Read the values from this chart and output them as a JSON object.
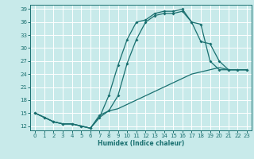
{
  "xlabel": "Humidex (Indice chaleur)",
  "bg_color": "#c8eaea",
  "grid_color": "#ffffff",
  "line_color": "#1a7070",
  "xlim": [
    -0.5,
    23.5
  ],
  "ylim": [
    11,
    40
  ],
  "yticks": [
    12,
    15,
    18,
    21,
    24,
    27,
    30,
    33,
    36,
    39
  ],
  "xticks": [
    0,
    1,
    2,
    3,
    4,
    5,
    6,
    7,
    8,
    9,
    10,
    11,
    12,
    13,
    14,
    15,
    16,
    17,
    18,
    19,
    20,
    21,
    22,
    23
  ],
  "curve1_x": [
    0,
    1,
    2,
    3,
    4,
    5,
    6,
    7,
    8,
    9,
    10,
    11,
    12,
    13,
    14,
    15,
    16,
    17,
    18,
    19,
    20,
    21,
    22,
    23
  ],
  "curve1_y": [
    15,
    14,
    13,
    12.5,
    12.5,
    12,
    11.5,
    14,
    19,
    26,
    32,
    36,
    36.5,
    38,
    38.5,
    38.5,
    39,
    36,
    35.5,
    27,
    25,
    25,
    25,
    25
  ],
  "curve2_x": [
    0,
    1,
    2,
    3,
    4,
    5,
    6,
    7,
    8,
    9,
    10,
    11,
    12,
    13,
    14,
    15,
    16,
    17,
    18,
    19,
    20,
    21,
    22,
    23
  ],
  "curve2_y": [
    15,
    14,
    13,
    12.5,
    12.5,
    12,
    11.5,
    14.5,
    15.5,
    19,
    26.5,
    32,
    36,
    37.5,
    38,
    38,
    38.5,
    36,
    31.5,
    31,
    27,
    25,
    25,
    25
  ],
  "curve3_x": [
    0,
    2,
    3,
    4,
    5,
    6,
    7,
    8,
    9,
    10,
    11,
    12,
    13,
    14,
    15,
    16,
    17,
    18,
    19,
    20,
    21,
    22,
    23
  ],
  "curve3_y": [
    15,
    13,
    12.5,
    12.5,
    12,
    11.5,
    14,
    15.5,
    16,
    17,
    18,
    19,
    20,
    21,
    22,
    23,
    24,
    24.5,
    25,
    25.5,
    25,
    25,
    25
  ]
}
